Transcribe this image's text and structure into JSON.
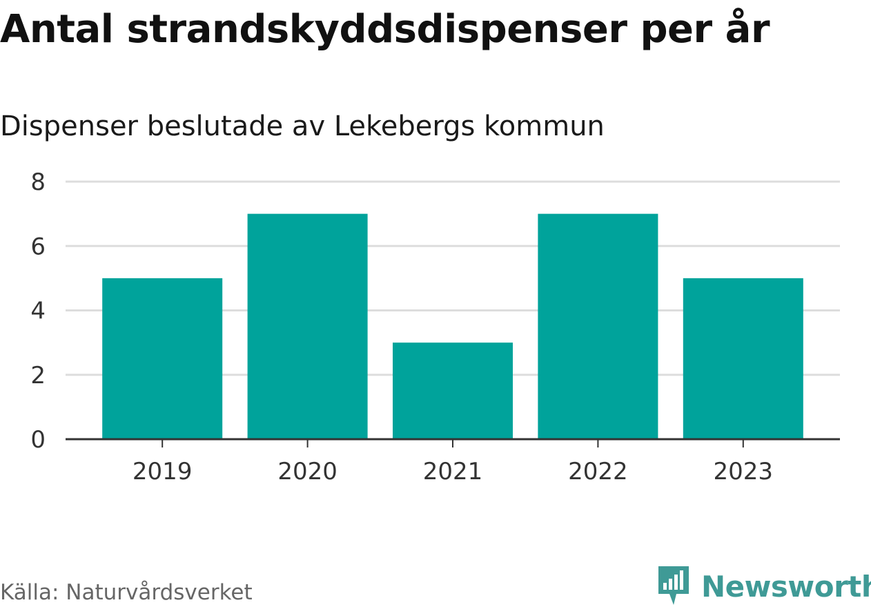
{
  "colors": {
    "bar": "#00a39b",
    "grid": "#dddddd",
    "axis": "#333333",
    "brand": "#3f9a96"
  },
  "chart_data": {
    "type": "bar",
    "title": "Antal strandskyddsdispenser per år",
    "subtitle": "Dispenser beslutade av Lekebergs kommun",
    "categories": [
      "2019",
      "2020",
      "2021",
      "2022",
      "2023"
    ],
    "values": [
      5,
      7,
      3,
      7,
      5
    ],
    "yticks": [
      "0",
      "2",
      "4",
      "6",
      "8"
    ],
    "ylim": [
      0,
      8
    ],
    "xlabel": "",
    "ylabel": "",
    "grid": true
  },
  "footer": {
    "source": "Källa: Naturvårdsverket",
    "brand": "Newsworthy",
    "brand_icon": "newsworthy-logo-icon"
  }
}
